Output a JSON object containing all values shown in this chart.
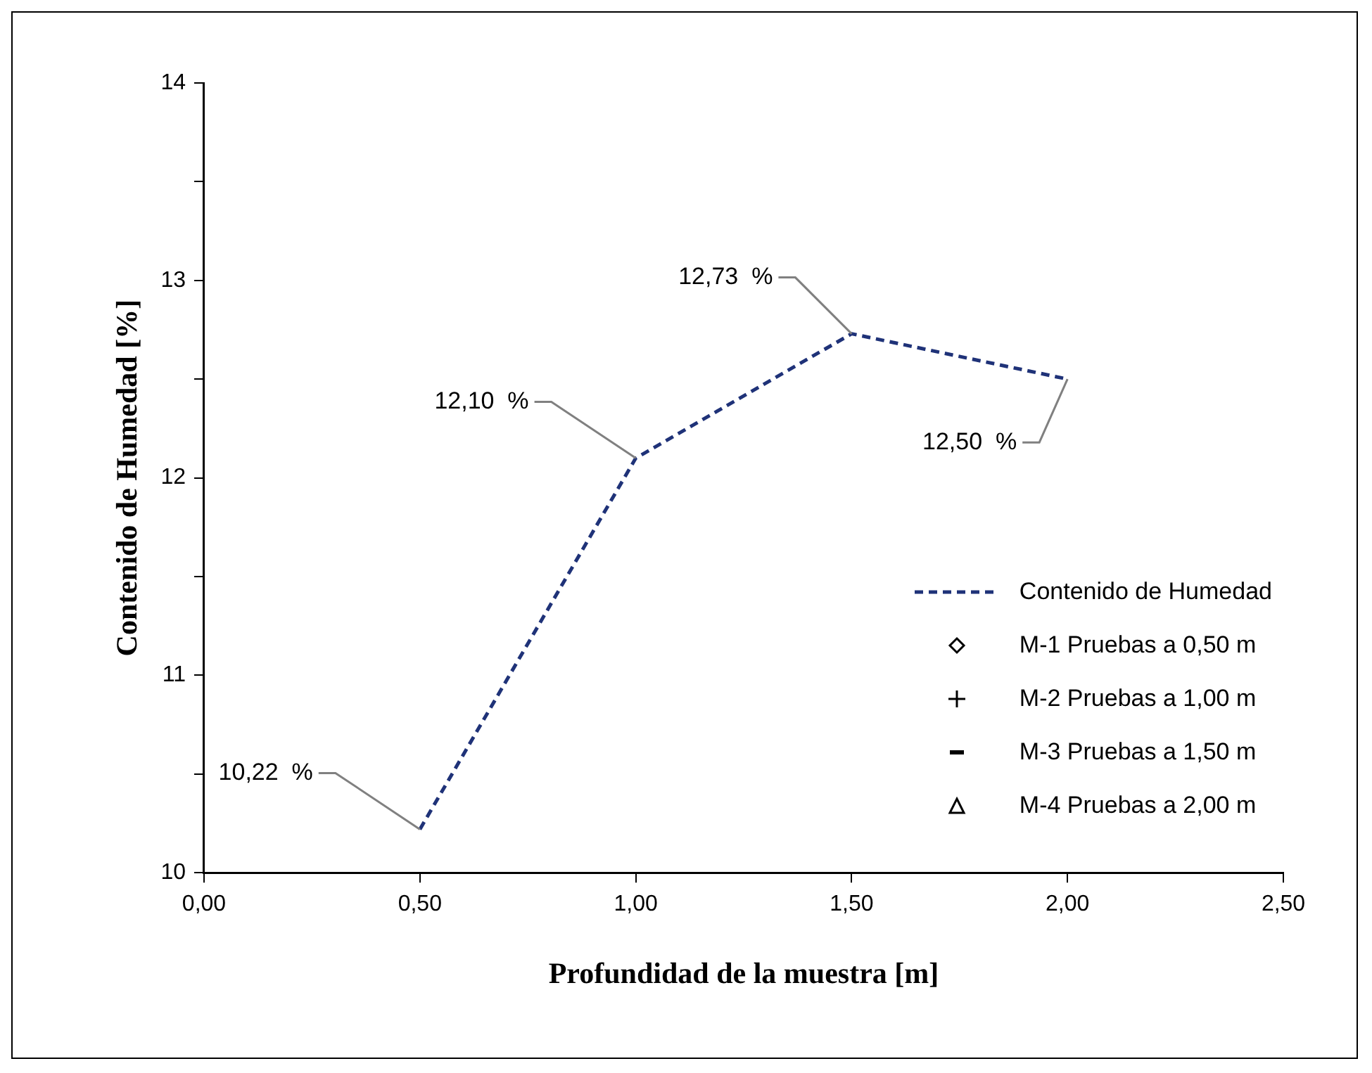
{
  "chart_data": {
    "type": "line",
    "xlabel": "Profundidad de la muestra [m]",
    "ylabel": "Contenido de Humedad [%]",
    "x": [
      0.5,
      1.0,
      1.5,
      2.0
    ],
    "series": [
      {
        "name": "Contenido de Humedad",
        "color": "#1f3278",
        "values": [
          10.22,
          12.1,
          12.73,
          12.5
        ],
        "line_style": "dashed",
        "marker": "none",
        "value_labels": [
          "10,22  %",
          "12,10  %",
          "12,73  %",
          "12,50  %"
        ]
      },
      {
        "name": "M-1 Pruebas a 0,50 m",
        "type": "scatter",
        "color": "#000000",
        "values": [
          null,
          null,
          null,
          null
        ],
        "marker": "diamond"
      },
      {
        "name": "M-2 Pruebas a 1,00 m",
        "type": "scatter",
        "color": "#000000",
        "values": [
          null,
          null,
          null,
          null
        ],
        "marker": "cross"
      },
      {
        "name": "M-3 Pruebas a 1,50 m",
        "type": "scatter",
        "color": "#000000",
        "values": [
          null,
          null,
          null,
          null
        ],
        "marker": "dash"
      },
      {
        "name": "M-4 Pruebas a 2,00 m",
        "type": "scatter",
        "color": "#000000",
        "values": [
          null,
          null,
          null,
          null
        ],
        "marker": "triangle"
      }
    ],
    "xlim": [
      0,
      2.5
    ],
    "xticks": [
      {
        "value": 0,
        "label": "0,00"
      },
      {
        "value": 0.5,
        "label": "0,50"
      },
      {
        "value": 1.0,
        "label": "1,00"
      },
      {
        "value": 1.5,
        "label": "1,50"
      },
      {
        "value": 2.0,
        "label": "2,00"
      },
      {
        "value": 2.5,
        "label": "2,50"
      }
    ],
    "ylim": [
      10,
      14
    ],
    "yticks": [
      10,
      {
        "value": 10.5,
        "label": null
      },
      11,
      {
        "value": 11.5,
        "label": null
      },
      12,
      {
        "value": 12.5,
        "label": null
      },
      13,
      {
        "value": 13.5,
        "label": null
      },
      14
    ],
    "grid": false,
    "legend": "bottom right"
  }
}
